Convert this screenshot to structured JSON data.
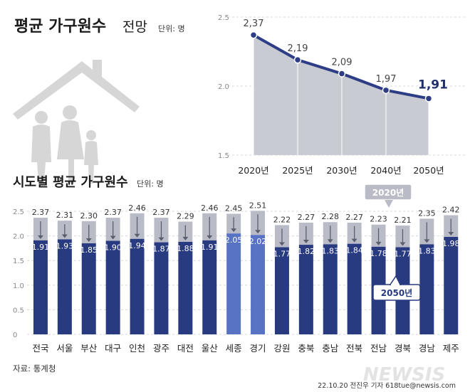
{
  "title": {
    "main": "평균 가구원수",
    "sub": "전망",
    "unit": "단위: 명"
  },
  "section2": {
    "main": "시도별 평균 가구원수",
    "unit": "단위: 명"
  },
  "source": "자료: 통계청",
  "credit": "22.10.20 전진우 기자 618tue@newsis.com",
  "watermark": "NEWSIS",
  "callouts": {
    "top": "2020년",
    "bottom": "2050년"
  },
  "colors": {
    "navy": "#283a80",
    "line": "#2d3d86",
    "highlight": "#5872c4",
    "top_segment": "#b9bcc6",
    "area": "#c9cbd2",
    "grid": "#d8d8d8"
  },
  "chart_data": [
    {
      "type": "line",
      "title": "평균 가구원수 전망",
      "categories": [
        "2020년",
        "2025년",
        "2030년",
        "2040년",
        "2050년"
      ],
      "series": [
        {
          "values": [
            2.37,
            2.19,
            2.09,
            1.97,
            1.91
          ]
        }
      ],
      "value_labels": [
        "2,37",
        "2,19",
        "2,09",
        "1,97",
        "1,91"
      ],
      "ylim": [
        1.5,
        2.5
      ],
      "yticks": [
        "1.5",
        "2.0",
        "2.5"
      ],
      "grid": true
    },
    {
      "type": "bar",
      "title": "시도별 평균 가구원수",
      "categories": [
        "전국",
        "서울",
        "부산",
        "대구",
        "인천",
        "광주",
        "대전",
        "울산",
        "세종",
        "경기",
        "강원",
        "충북",
        "충남",
        "전북",
        "전남",
        "경북",
        "경남",
        "제주"
      ],
      "series": [
        {
          "name": "2020년",
          "values": [
            2.37,
            2.31,
            2.3,
            2.37,
            2.46,
            2.37,
            2.29,
            2.46,
            2.45,
            2.51,
            2.22,
            2.27,
            2.28,
            2.27,
            2.23,
            2.21,
            2.35,
            2.42
          ]
        },
        {
          "name": "2050년",
          "values": [
            1.91,
            1.93,
            1.85,
            1.9,
            1.94,
            1.87,
            1.88,
            1.91,
            2.05,
            2.02,
            1.77,
            1.82,
            1.83,
            1.84,
            1.78,
            1.77,
            1.83,
            1.98
          ]
        }
      ],
      "highlighted": [
        "세종",
        "경기"
      ],
      "ylim": [
        0,
        2.5
      ],
      "yticks": [
        "0",
        "0.5",
        "1.0",
        "1.5",
        "2.0",
        "2.5"
      ],
      "grid": true
    }
  ]
}
